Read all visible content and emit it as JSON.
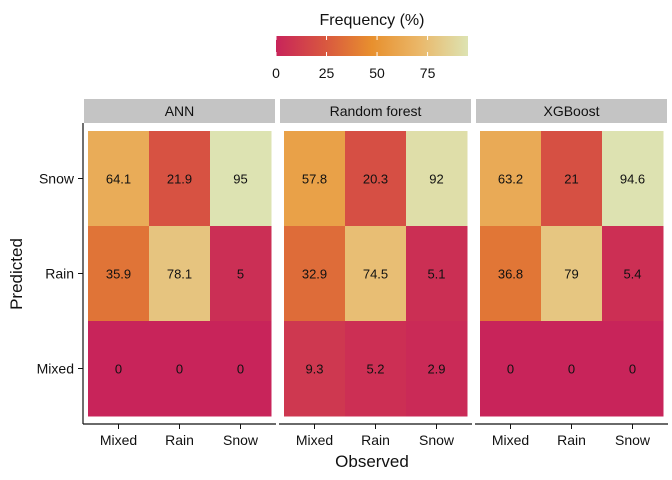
{
  "chart_data": {
    "type": "heatmap",
    "title": "",
    "xlabel": "Observed",
    "ylabel": "Predicted",
    "x_categories": [
      "Mixed",
      "Rain",
      "Snow"
    ],
    "y_categories": [
      "Snow",
      "Rain",
      "Mixed"
    ],
    "panels": [
      {
        "name": "ANN",
        "values": [
          [
            64.1,
            21.9,
            95
          ],
          [
            35.9,
            78.1,
            5
          ],
          [
            0,
            0,
            0
          ]
        ]
      },
      {
        "name": "Random forest",
        "values": [
          [
            57.8,
            20.3,
            92
          ],
          [
            32.9,
            74.5,
            5.1
          ],
          [
            9.3,
            5.2,
            2.9
          ]
        ]
      },
      {
        "name": "XGBoost",
        "values": [
          [
            63.2,
            21,
            94.6
          ],
          [
            36.8,
            79,
            5.4
          ],
          [
            0,
            0,
            0
          ]
        ]
      }
    ],
    "legend": {
      "title": "Frequency (%)",
      "ticks": [
        0,
        25,
        50,
        75
      ],
      "range": [
        0,
        95
      ],
      "placement": "top",
      "colors": [
        "#c8245a",
        "#d85640",
        "#e8902e",
        "#eab86a",
        "#dde3b2"
      ]
    }
  }
}
